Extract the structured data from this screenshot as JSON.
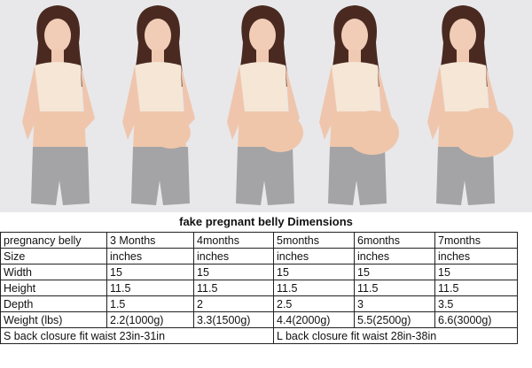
{
  "title": "fake pregnant belly Dimensions",
  "table": {
    "rows": [
      [
        "pregnancy belly",
        "3 Months",
        "4months",
        "5months",
        "6months",
        "7months"
      ],
      [
        "Size",
        "inches",
        "inches",
        "inches",
        "inches",
        "inches"
      ],
      [
        "Width",
        "15",
        "15",
        "15",
        "15",
        "15"
      ],
      [
        "Height",
        "11.5",
        "11.5",
        "11.5",
        "11.5",
        "11.5"
      ],
      [
        "Depth",
        "1.5",
        "2",
        "2.5",
        "3",
        "3.5"
      ],
      [
        "Weight (lbs)",
        "2.2(1000g)",
        "3.3(1500g)",
        "4.4(2000g)",
        "5.5(2500g)",
        "6.6(3000g)"
      ]
    ],
    "footer": [
      "S back closure fit waist 23in-31in",
      "L back closure fit waist 28in-38in"
    ]
  }
}
